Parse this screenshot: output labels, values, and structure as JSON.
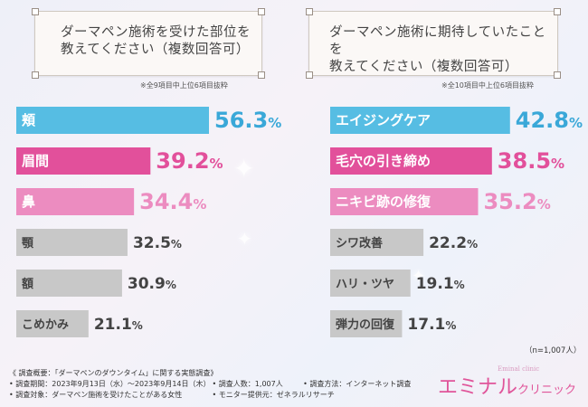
{
  "left_panel": {
    "title": "ダーマペン施術を受けた部位を\n教えてください（複数回答可）",
    "note": "※全9項目中上位6項目抜粋"
  },
  "right_panel": {
    "title": "ダーマペン施術に期待していたことを\n教えてください（複数回答可）",
    "note": "※全10項目中上位6項目抜粋"
  },
  "chart_data": [
    {
      "type": "bar",
      "orientation": "horizontal",
      "title": "ダーマペン施術を受けた部位を教えてください（複数回答可）",
      "categories": [
        "頬",
        "眉間",
        "鼻",
        "顎",
        "額",
        "こめかみ"
      ],
      "values": [
        56.3,
        39.2,
        34.4,
        32.5,
        30.9,
        21.1
      ],
      "unit": "%",
      "colors": [
        "#56bde3",
        "#e2509b",
        "#ec8cc0",
        "#c8c8c8",
        "#c8c8c8",
        "#c8c8c8"
      ],
      "value_colors": [
        "#3aa8d8",
        "#e2509b",
        "#ec8cc0",
        "#444444",
        "#444444",
        "#444444"
      ],
      "xlim": [
        0,
        60
      ]
    },
    {
      "type": "bar",
      "orientation": "horizontal",
      "title": "ダーマペン施術に期待していたことを教えてください（複数回答可）",
      "categories": [
        "エイジングケア",
        "毛穴の引き締め",
        "ニキビ跡の修復",
        "シワ改善",
        "ハリ・ツヤ",
        "弾力の回復"
      ],
      "values": [
        42.8,
        38.5,
        35.2,
        22.2,
        19.1,
        17.1
      ],
      "unit": "%",
      "colors": [
        "#56bde3",
        "#e2509b",
        "#ec8cc0",
        "#c8c8c8",
        "#c8c8c8",
        "#c8c8c8"
      ],
      "value_colors": [
        "#3aa8d8",
        "#e2509b",
        "#ec8cc0",
        "#444444",
        "#444444",
        "#444444"
      ],
      "xlim": [
        0,
        45
      ]
    }
  ],
  "sample_size": "（n=1,007人）",
  "footer": {
    "line1": "《 調査概要：「ダーマペンのダウンタイム」に関する実態調査》",
    "period": "• 調査期間：2023年9月13日（水）〜2023年9月14日（木）",
    "people": "• 調査人数：1,007人",
    "method": "• 調査方法：インターネット調査",
    "target": "• 調査対象：ダーマペン施術を受けたことがある女性",
    "provider": "• モニター提供元：ゼネラルリサーチ"
  },
  "logo": {
    "main": "エミナル",
    "sub": "クリニック",
    "small": "Eminal clinic"
  }
}
